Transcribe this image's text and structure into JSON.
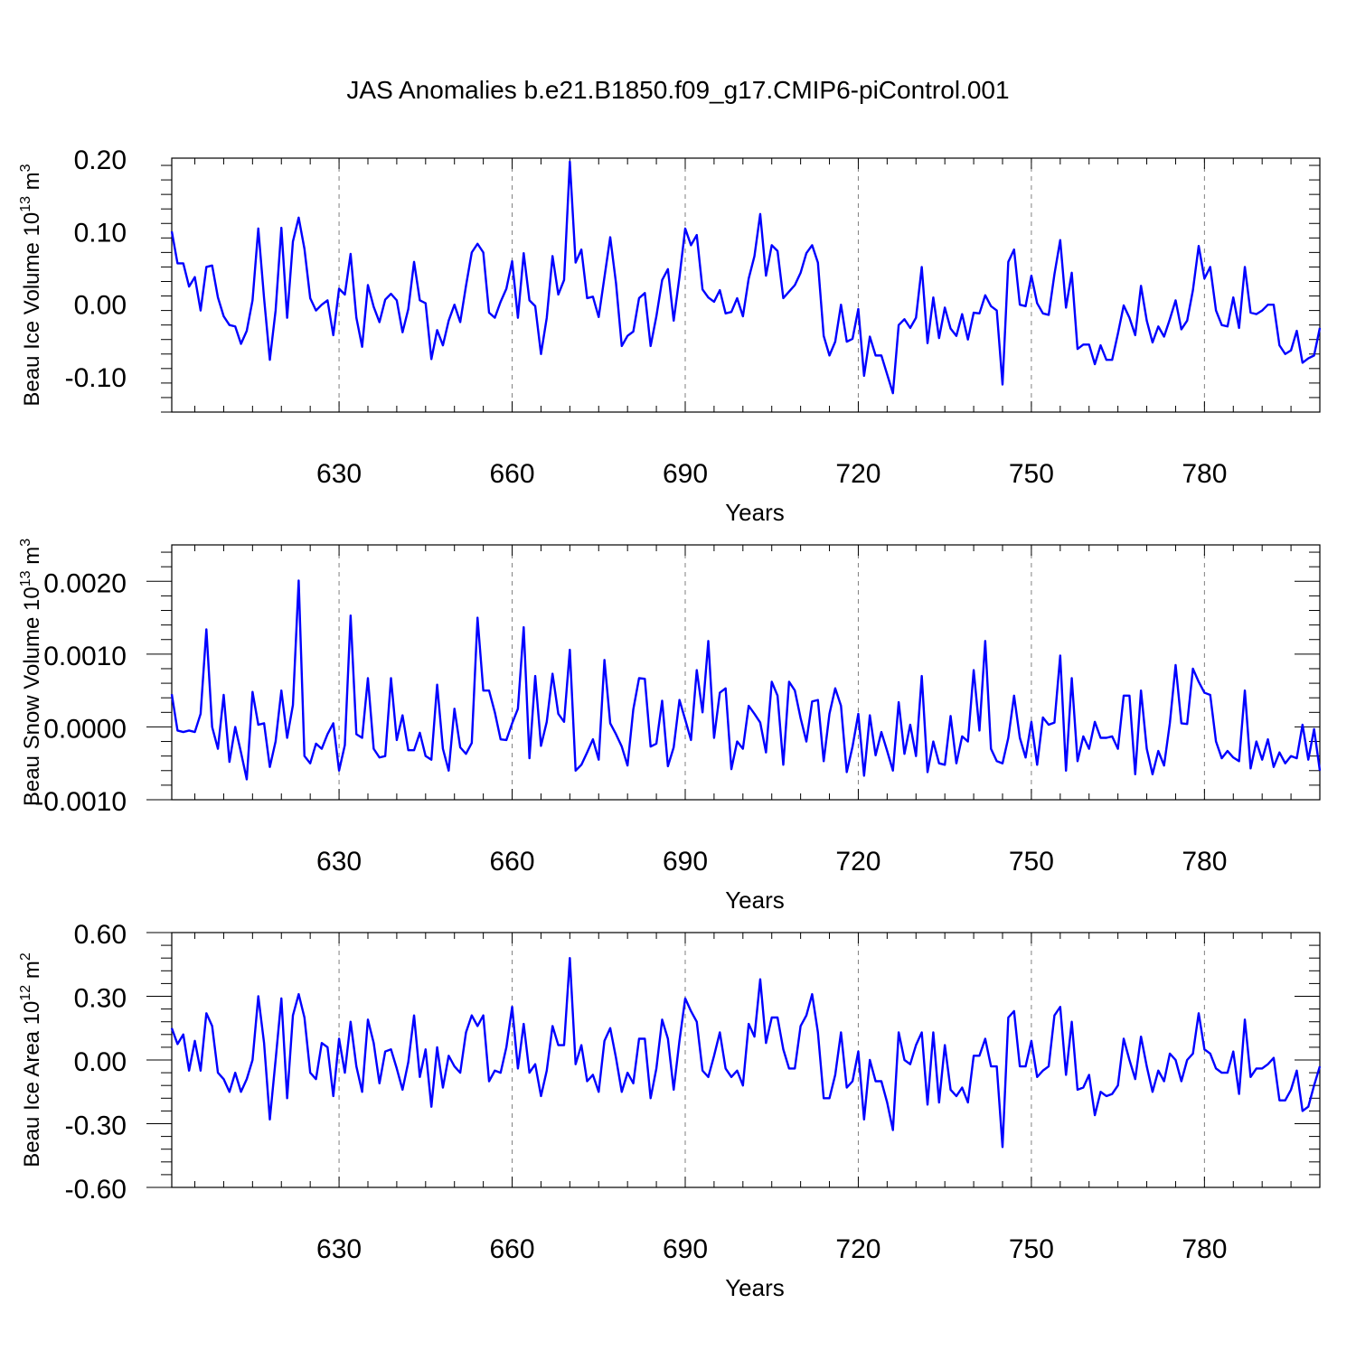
{
  "title": "JAS Anomalies b.e21.B1850.f09_g17.CMIP6-piControl.001",
  "colors": {
    "line": "#0000ff",
    "axis": "#000000",
    "grid": "#808080"
  },
  "chart_data": [
    {
      "type": "line",
      "xlabel": "Years",
      "ylabel": "Beau Ice Volume 10",
      "ylabel_exp": "13",
      "ylabel_unit": " m",
      "ylabel_unit_exp": "3",
      "xlim": [
        601,
        800
      ],
      "ylim": [
        -0.15,
        0.2
      ],
      "xticks": [
        630,
        660,
        690,
        720,
        750,
        780
      ],
      "xtick_labels": [
        "630",
        "660",
        "690",
        "720",
        "750",
        "780"
      ],
      "yticks": [
        -0.1,
        0.0,
        0.1,
        0.2
      ],
      "ytick_labels": [
        "-0.10",
        "0.00",
        "0.10",
        "0.20"
      ],
      "grid": "vertical dashed at major x ticks",
      "series": [
        {
          "x_start": 601,
          "values": [
            0.099,
            0.055,
            0.055,
            0.023,
            0.036,
            -0.01,
            0.05,
            0.052,
            0.008,
            -0.018,
            -0.03,
            -0.032,
            -0.056,
            -0.038,
            0.004,
            0.103,
            0.007,
            -0.078,
            -0.01,
            0.104,
            -0.02,
            0.085,
            0.118,
            0.075,
            0.007,
            -0.01,
            -0.002,
            0.004,
            -0.044,
            0.02,
            0.012,
            0.068,
            -0.02,
            -0.06,
            0.025,
            -0.005,
            -0.026,
            0.005,
            0.013,
            0.004,
            -0.04,
            -0.008,
            0.057,
            0.004,
            0.0,
            -0.077,
            -0.037,
            -0.058,
            -0.024,
            -0.002,
            -0.026,
            0.024,
            0.07,
            0.082,
            0.07,
            -0.013,
            -0.02,
            0.002,
            0.02,
            0.058,
            -0.02,
            0.069,
            0.004,
            -0.004,
            -0.07,
            -0.02,
            0.065,
            0.012,
            0.032,
            0.195,
            0.056,
            0.074,
            0.007,
            0.009,
            -0.019,
            0.036,
            0.091,
            0.028,
            -0.059,
            -0.045,
            -0.039,
            0.007,
            0.014,
            -0.059,
            -0.018,
            0.032,
            0.047,
            -0.024,
            0.036,
            0.103,
            0.08,
            0.094,
            0.019,
            0.008,
            0.002,
            0.018,
            -0.014,
            -0.012,
            0.007,
            -0.018,
            0.034,
            0.065,
            0.123,
            0.038,
            0.08,
            0.072,
            0.007,
            0.016,
            0.025,
            0.042,
            0.069,
            0.08,
            0.056,
            -0.045,
            -0.072,
            -0.053,
            -0.002,
            -0.053,
            -0.049,
            -0.008,
            -0.1,
            -0.046,
            -0.072,
            -0.072,
            -0.098,
            -0.124,
            -0.03,
            -0.022,
            -0.034,
            -0.02,
            0.05,
            -0.055,
            0.008,
            -0.048,
            -0.006,
            -0.035,
            -0.045,
            -0.015,
            -0.05,
            -0.013,
            -0.014,
            0.011,
            -0.004,
            -0.01,
            -0.112,
            0.057,
            0.074,
            -0.002,
            -0.004,
            0.038,
            0.0,
            -0.014,
            -0.016,
            0.04,
            0.087,
            -0.006,
            0.042,
            -0.063,
            -0.057,
            -0.057,
            -0.084,
            -0.058,
            -0.078,
            -0.078,
            -0.042,
            -0.003,
            -0.02,
            -0.044,
            0.024,
            -0.024,
            -0.054,
            -0.032,
            -0.046,
            -0.022,
            0.004,
            -0.036,
            -0.024,
            0.018,
            0.079,
            0.034,
            0.05,
            -0.01,
            -0.03,
            -0.032,
            0.008,
            -0.034,
            0.05,
            -0.013,
            -0.015,
            -0.01,
            -0.002,
            -0.002,
            -0.058,
            -0.07,
            -0.065,
            -0.038,
            -0.082,
            -0.076,
            -0.072,
            -0.034
          ]
        }
      ]
    },
    {
      "type": "line",
      "xlabel": "Years",
      "ylabel": "Beau Snow Volume 10",
      "ylabel_exp": "13",
      "ylabel_unit": " m",
      "ylabel_unit_exp": "3",
      "xlim": [
        601,
        800
      ],
      "ylim": [
        -0.001,
        0.0025
      ],
      "xticks": [
        630,
        660,
        690,
        720,
        750,
        780
      ],
      "xtick_labels": [
        "630",
        "660",
        "690",
        "720",
        "750",
        "780"
      ],
      "yticks": [
        -0.001,
        0.0,
        0.001,
        0.002
      ],
      "ytick_labels": [
        "-0.0010",
        "0.0000",
        "0.0010",
        "0.0020"
      ],
      "grid": "vertical dashed at major x ticks",
      "series": [
        {
          "x_start": 601,
          "values": [
            0.00045,
            -5e-05,
            -7e-05,
            -5e-05,
            -7e-05,
            0.00018,
            0.00134,
            0.0,
            -0.0003,
            0.00044,
            -0.00048,
            0.0,
            -0.00035,
            -0.00072,
            0.00048,
            3e-05,
            5e-05,
            -0.00055,
            -0.0002,
            0.0005,
            -0.00015,
            0.0003,
            0.00201,
            -0.0004,
            -0.0005,
            -0.00023,
            -0.0003,
            -0.0001,
            5e-05,
            -0.0006,
            -0.00025,
            0.00153,
            -0.0001,
            -0.00015,
            0.00067,
            -0.0003,
            -0.00042,
            -0.0004,
            0.00067,
            -0.00018,
            0.00016,
            -0.00032,
            -0.00032,
            -8e-05,
            -0.0004,
            -0.00045,
            0.00058,
            -0.0003,
            -0.0006,
            0.00025,
            -0.00028,
            -0.00037,
            -0.00022,
            0.0015,
            0.0005,
            0.0005,
            0.0002,
            -0.00017,
            -0.00018,
            5e-05,
            0.00025,
            0.00137,
            -0.00043,
            0.0007,
            -0.00026,
            7e-05,
            0.00073,
            0.00018,
            7e-05,
            0.00106,
            -0.0006,
            -0.00052,
            -0.00035,
            -0.00017,
            -0.00045,
            0.00092,
            5e-05,
            -0.0001,
            -0.00027,
            -0.00053,
            0.00024,
            0.00067,
            0.00066,
            -0.00027,
            -0.00023,
            0.00036,
            -0.00054,
            -0.00028,
            0.00037,
            0.0001,
            -0.00018,
            0.00078,
            0.0002,
            0.00118,
            -0.00015,
            0.00047,
            0.00053,
            -0.00058,
            -0.0002,
            -0.0003,
            0.00029,
            0.00018,
            6e-05,
            -0.00035,
            0.00062,
            0.00043,
            -0.00052,
            0.00062,
            0.0005,
            0.00012,
            -0.0002,
            0.00035,
            0.00037,
            -0.00047,
            0.00018,
            0.00053,
            0.00029,
            -0.00062,
            -0.00027,
            0.00018,
            -0.00067,
            0.00016,
            -0.00039,
            -7e-05,
            -0.00033,
            -0.0006,
            0.00034,
            -0.00037,
            3e-05,
            -0.0004,
            0.0007,
            -0.00062,
            -0.0002,
            -0.0005,
            -0.00052,
            0.00015,
            -0.0005,
            -0.00013,
            -0.0002,
            0.00078,
            -5e-05,
            0.00118,
            -0.0003,
            -0.00047,
            -0.0005,
            -0.00015,
            0.00043,
            -0.00015,
            -0.00042,
            7e-05,
            -0.00052,
            0.00013,
            3e-05,
            6e-05,
            0.00098,
            -0.0006,
            0.00067,
            -0.00047,
            -0.00013,
            -0.0003,
            7e-05,
            -0.00015,
            -0.00015,
            -0.00013,
            -0.0003,
            0.00043,
            0.00043,
            -0.00065,
            0.0005,
            -0.0003,
            -0.00065,
            -0.00033,
            -0.00053,
            5e-05,
            0.00085,
            5e-05,
            4e-05,
            0.0008,
            0.00062,
            0.00047,
            0.00044,
            -0.0002,
            -0.00043,
            -0.00033,
            -0.00042,
            -0.00047,
            0.0005,
            -0.00057,
            -0.0002,
            -0.00045,
            -0.00017,
            -0.00055,
            -0.00035,
            -0.0005,
            -0.0004,
            -0.00043,
            3e-05,
            -0.00045,
            -3e-05,
            -0.0006
          ]
        }
      ]
    },
    {
      "type": "line",
      "xlabel": "Years",
      "ylabel": "Beau Ice Area 10",
      "ylabel_exp": "12",
      "ylabel_unit": " m",
      "ylabel_unit_exp": "2",
      "xlim": [
        601,
        800
      ],
      "ylim": [
        -0.6,
        0.6
      ],
      "xticks": [
        630,
        660,
        690,
        720,
        750,
        780
      ],
      "xtick_labels": [
        "630",
        "660",
        "690",
        "720",
        "750",
        "780"
      ],
      "yticks": [
        -0.6,
        -0.3,
        0.0,
        0.3,
        0.6
      ],
      "ytick_labels": [
        "-0.60",
        "-0.30",
        "0.00",
        "0.30",
        "0.60"
      ],
      "grid": "vertical dashed at major x ticks",
      "series": [
        {
          "x_start": 601,
          "values": [
            0.15,
            0.075,
            0.12,
            -0.05,
            0.09,
            -0.05,
            0.22,
            0.16,
            -0.06,
            -0.09,
            -0.15,
            -0.06,
            -0.15,
            -0.09,
            0.0,
            0.3,
            0.08,
            -0.28,
            0.0,
            0.29,
            -0.18,
            0.21,
            0.31,
            0.2,
            -0.06,
            -0.09,
            0.08,
            0.06,
            -0.17,
            0.1,
            -0.06,
            0.18,
            -0.03,
            -0.15,
            0.19,
            0.08,
            -0.11,
            0.04,
            0.05,
            -0.04,
            -0.14,
            -0.01,
            0.21,
            -0.08,
            0.05,
            -0.22,
            0.06,
            -0.13,
            0.02,
            -0.03,
            -0.06,
            0.13,
            0.21,
            0.16,
            0.21,
            -0.1,
            -0.05,
            -0.06,
            0.06,
            0.25,
            -0.04,
            0.17,
            -0.06,
            -0.02,
            -0.17,
            -0.05,
            0.16,
            0.07,
            0.07,
            0.48,
            -0.02,
            0.07,
            -0.1,
            -0.07,
            -0.15,
            0.09,
            0.15,
            0.01,
            -0.15,
            -0.06,
            -0.11,
            0.1,
            0.1,
            -0.18,
            -0.04,
            0.19,
            0.1,
            -0.14,
            0.09,
            0.29,
            0.23,
            0.18,
            -0.05,
            -0.08,
            0.02,
            0.13,
            -0.04,
            -0.08,
            -0.05,
            -0.12,
            0.17,
            0.11,
            0.38,
            0.08,
            0.2,
            0.2,
            0.05,
            -0.04,
            -0.04,
            0.16,
            0.21,
            0.31,
            0.13,
            -0.18,
            -0.18,
            -0.07,
            0.13,
            -0.13,
            -0.1,
            0.04,
            -0.28,
            0.0,
            -0.1,
            -0.1,
            -0.2,
            -0.33,
            0.13,
            0.0,
            -0.02,
            0.07,
            0.13,
            -0.21,
            0.13,
            -0.2,
            0.07,
            -0.14,
            -0.17,
            -0.13,
            -0.2,
            0.02,
            0.02,
            0.1,
            -0.03,
            -0.03,
            -0.41,
            0.2,
            0.23,
            -0.03,
            -0.03,
            0.09,
            -0.08,
            -0.05,
            -0.03,
            0.21,
            0.25,
            -0.07,
            0.18,
            -0.14,
            -0.13,
            -0.07,
            -0.26,
            -0.15,
            -0.17,
            -0.16,
            -0.12,
            0.1,
            0.0,
            -0.09,
            0.11,
            -0.03,
            -0.15,
            -0.05,
            -0.1,
            0.03,
            0.0,
            -0.1,
            0.0,
            0.03,
            0.22,
            0.05,
            0.03,
            -0.04,
            -0.06,
            -0.06,
            0.04,
            -0.16,
            0.19,
            -0.08,
            -0.04,
            -0.04,
            -0.02,
            0.01,
            -0.19,
            -0.19,
            -0.14,
            -0.05,
            -0.24,
            -0.22,
            -0.12,
            -0.03
          ]
        }
      ]
    }
  ]
}
